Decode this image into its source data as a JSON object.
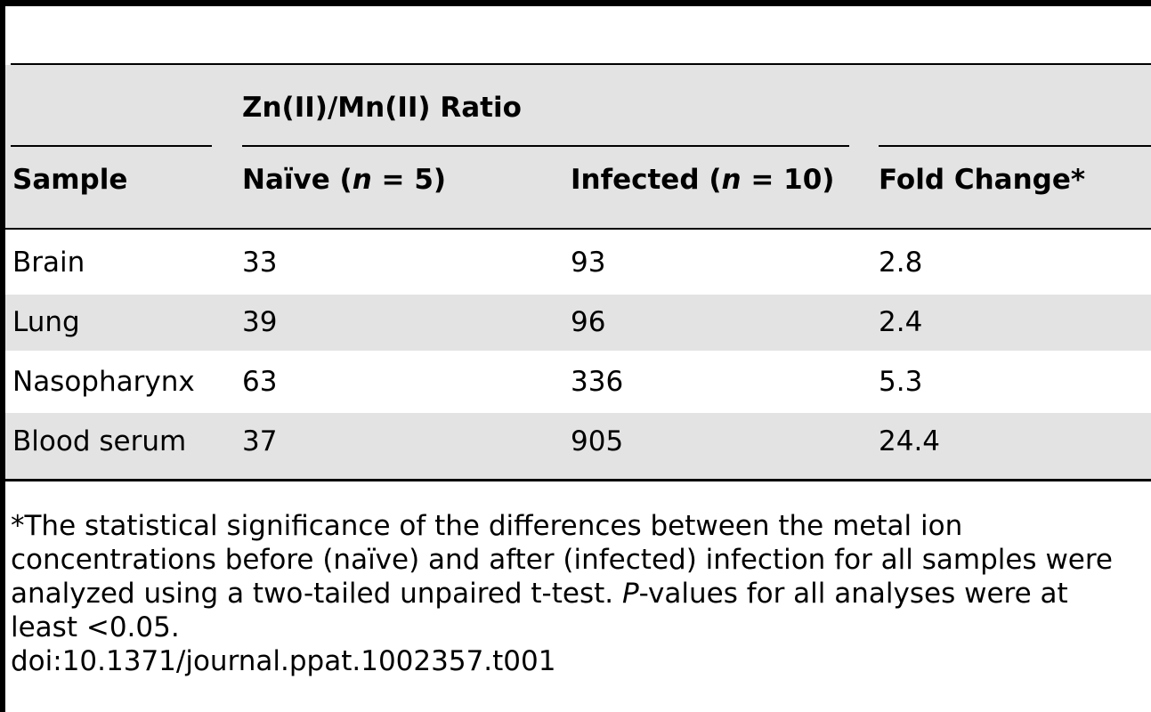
{
  "table": {
    "group_header": "Zn(II)/Mn(II) Ratio",
    "columns": {
      "sample": "Sample",
      "naive": {
        "label": "Naïve (",
        "n_symbol": "n",
        "n_value": " = 5)"
      },
      "infected": {
        "label": "Infected (",
        "n_symbol": "n",
        "n_value": " = 10)"
      },
      "fold": "Fold Change*"
    },
    "rows": [
      {
        "sample": "Brain",
        "naive": "33",
        "infected": "93",
        "fold": "2.8"
      },
      {
        "sample": "Lung",
        "naive": "39",
        "infected": "96",
        "fold": "2.4"
      },
      {
        "sample": "Nasopharynx",
        "naive": "63",
        "infected": "336",
        "fold": "5.3"
      },
      {
        "sample": "Blood serum",
        "naive": "37",
        "infected": "905",
        "fold": "24.4"
      }
    ]
  },
  "footnote": {
    "line1": "*The statistical significance of the differences between the metal ion",
    "line2": "concentrations before (naïve) and after (infected) infection for all samples were",
    "line3_a": "analyzed using a two-tailed unpaired t-test. ",
    "line3_p": "P",
    "line3_b": "-values for all analyses were at",
    "line4": "least <0.05."
  },
  "doi": "doi:10.1371/journal.ppat.1002357.t001"
}
